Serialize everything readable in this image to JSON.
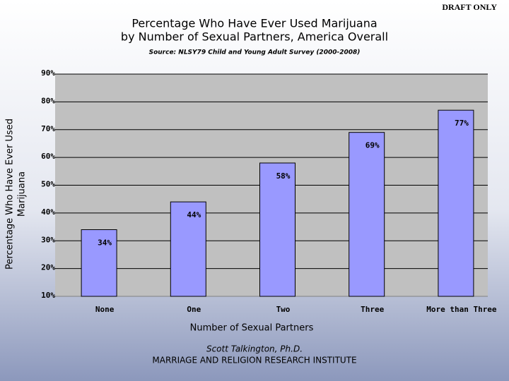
{
  "chart_data": {
    "type": "bar",
    "draft_label": "DRAFT ONLY",
    "title": [
      "Percentage Who Have Ever Used Marijuana",
      "by Number of Sexual Partners, America Overall"
    ],
    "subtitle": "Source: NLSY79 Child and Young Adult Survey (2000-2008)",
    "x_label": "Number of Sexual Partners",
    "y_label": [
      "Percentage Who Have Ever Used",
      "Marijuana"
    ],
    "footer": [
      "Scott Talkington, Ph.D.",
      "MARRIAGE AND RELIGION RESEARCH INSTITUTE"
    ],
    "categories": [
      "None",
      "One",
      "Two",
      "Three",
      "More than Three"
    ],
    "values": [
      34,
      44,
      58,
      69,
      77
    ],
    "value_labels": [
      "34%",
      "44%",
      "58%",
      "69%",
      "77%"
    ],
    "color": "#9999ff",
    "ylim": [
      10,
      90
    ],
    "yticks": [
      {
        "value": 10,
        "label": "10%"
      },
      {
        "value": 20,
        "label": "20%"
      },
      {
        "value": 30,
        "label": "30%"
      },
      {
        "value": 40,
        "label": "40%"
      },
      {
        "value": 50,
        "label": "50%"
      },
      {
        "value": 60,
        "label": "60%"
      },
      {
        "value": 70,
        "label": "70%"
      },
      {
        "value": 80,
        "label": "80%"
      },
      {
        "value": 90,
        "label": "90%"
      }
    ],
    "grid": true
  }
}
